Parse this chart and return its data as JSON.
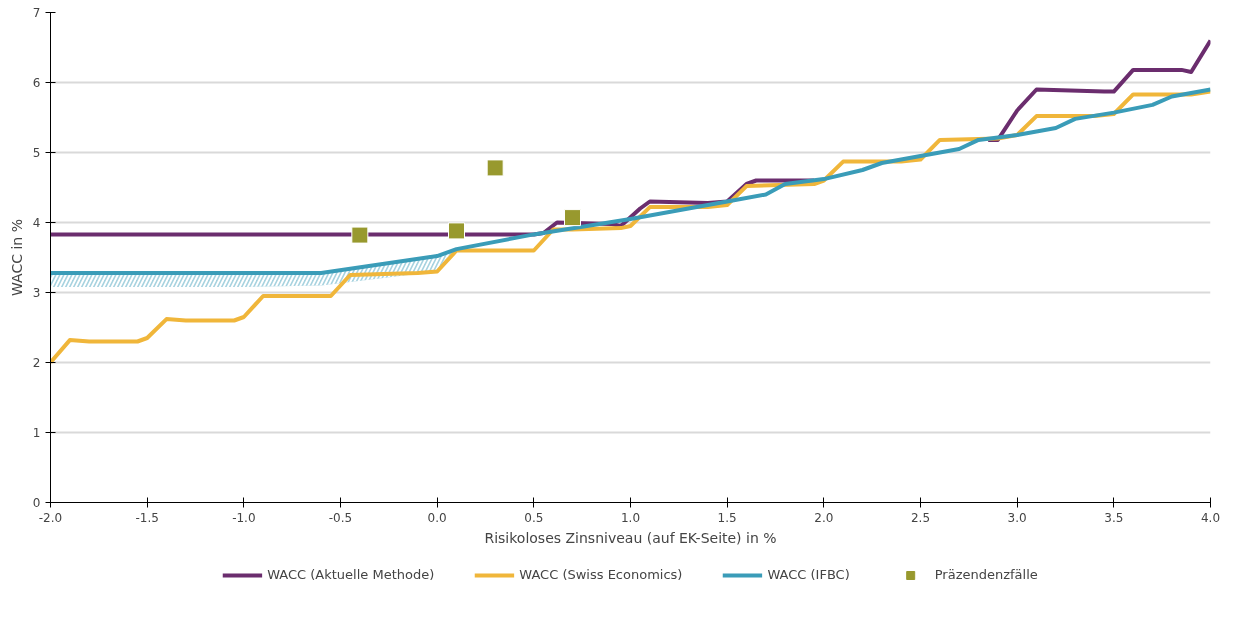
{
  "chart_data": {
    "type": "line",
    "xlabel": "Risikoloses Zinsniveau (auf EK-Seite) in %",
    "ylabel": "WACC in %",
    "xlim": [
      -2,
      4
    ],
    "ylim": [
      0,
      7
    ],
    "xticks": [
      {
        "value": -2,
        "label": "-2.0"
      },
      {
        "value": -1.5,
        "label": "-1.5"
      },
      {
        "value": -1,
        "label": "-1.0"
      },
      {
        "value": -0.5,
        "label": "-0.5"
      },
      {
        "value": 0,
        "label": "0.0"
      },
      {
        "value": 0.5,
        "label": "0.5"
      },
      {
        "value": 1,
        "label": "1.0"
      },
      {
        "value": 1.5,
        "label": "1.5"
      },
      {
        "value": 2,
        "label": "2.0"
      },
      {
        "value": 2.5,
        "label": "2.5"
      },
      {
        "value": 3,
        "label": "3.0"
      },
      {
        "value": 3.5,
        "label": "3.5"
      },
      {
        "value": 4,
        "label": "4.0"
      }
    ],
    "yticks": [
      0,
      1,
      2,
      3,
      4,
      5,
      6,
      7
    ],
    "grid": "y",
    "legend": "bottom",
    "line_style": "solid",
    "marker": "none",
    "series": [
      {
        "name": "WACC (Aktuelle Methode)",
        "color": "#6b2d6e",
        "x": [
          -2,
          -1,
          0,
          0.5,
          0.55,
          0.62,
          0.9,
          0.95,
          1.05,
          1.1,
          1.4,
          1.5,
          1.6,
          1.65,
          1.95,
          2.0,
          2.1,
          2.4,
          2.5,
          2.6,
          2.85,
          2.9,
          3.0,
          3.1,
          3.45,
          3.5,
          3.6,
          3.85,
          3.9,
          4.0
        ],
        "values": [
          3.83,
          3.83,
          3.83,
          3.83,
          3.85,
          4.0,
          3.98,
          3.95,
          4.2,
          4.3,
          4.28,
          4.3,
          4.55,
          4.6,
          4.6,
          null,
          null,
          null,
          null,
          null,
          5.18,
          5.18,
          5.6,
          5.9,
          5.87,
          5.87,
          6.18,
          6.18,
          6.15,
          6.6
        ]
      },
      {
        "name": "WACC (Swiss Economics)",
        "color": "#f0b63a",
        "x": [
          -2,
          -1.9,
          -1.8,
          -1.55,
          -1.5,
          -1.4,
          -1.3,
          -1.05,
          -1.0,
          -0.9,
          -0.8,
          -0.55,
          -0.45,
          -0.1,
          0.0,
          0.1,
          0.2,
          0.45,
          0.5,
          0.6,
          0.7,
          0.95,
          1.0,
          1.1,
          1.4,
          1.5,
          1.6,
          1.95,
          2.0,
          2.1,
          2.4,
          2.5,
          2.6,
          2.9,
          3.0,
          3.1,
          3.4,
          3.5,
          3.6,
          3.9,
          4.0
        ],
        "values": [
          2.0,
          2.32,
          2.3,
          2.3,
          2.35,
          2.62,
          2.6,
          2.6,
          2.65,
          2.95,
          2.95,
          2.95,
          3.25,
          3.28,
          3.3,
          3.6,
          3.6,
          3.6,
          3.6,
          3.9,
          3.9,
          3.92,
          3.95,
          4.22,
          4.22,
          4.25,
          4.52,
          4.55,
          4.6,
          4.87,
          4.87,
          4.9,
          5.18,
          5.2,
          5.25,
          5.52,
          5.52,
          5.55,
          5.83,
          5.83,
          5.87
        ]
      },
      {
        "name": "WACC (IFBC)",
        "color": "#3a9cb8",
        "x": [
          -2,
          -1,
          -0.6,
          0.0,
          0.05,
          0.1,
          0.5,
          1.0,
          1.5,
          1.7,
          1.8,
          2.0,
          2.2,
          2.3,
          2.5,
          2.7,
          2.8,
          3.0,
          3.2,
          3.3,
          3.5,
          3.7,
          3.8,
          4.0
        ],
        "values": [
          3.28,
          3.28,
          3.28,
          3.52,
          3.57,
          3.62,
          3.83,
          4.05,
          4.3,
          4.4,
          4.55,
          4.62,
          4.75,
          4.85,
          4.95,
          5.05,
          5.18,
          5.25,
          5.35,
          5.48,
          5.57,
          5.68,
          5.8,
          5.9
        ],
        "lower": [
          3.08,
          3.08,
          3.1,
          3.3,
          3.5,
          3.62,
          null,
          null,
          null,
          null,
          null,
          null,
          null,
          null,
          null,
          null,
          null,
          null,
          null,
          null,
          null,
          null,
          null,
          null
        ],
        "upper": [
          3.28,
          3.28,
          3.28,
          3.52,
          3.57,
          3.62,
          null,
          null,
          null,
          null,
          null,
          null,
          null,
          null,
          null,
          null,
          null,
          null,
          null,
          null,
          null,
          null,
          null,
          null
        ]
      },
      {
        "name": "Präzendenzfälle",
        "type": "scatter",
        "marker": "square",
        "color": "#98992e",
        "x": [
          -0.4,
          0.1,
          0.3,
          0.7
        ],
        "values": [
          3.82,
          3.88,
          4.78,
          4.07
        ]
      }
    ]
  }
}
